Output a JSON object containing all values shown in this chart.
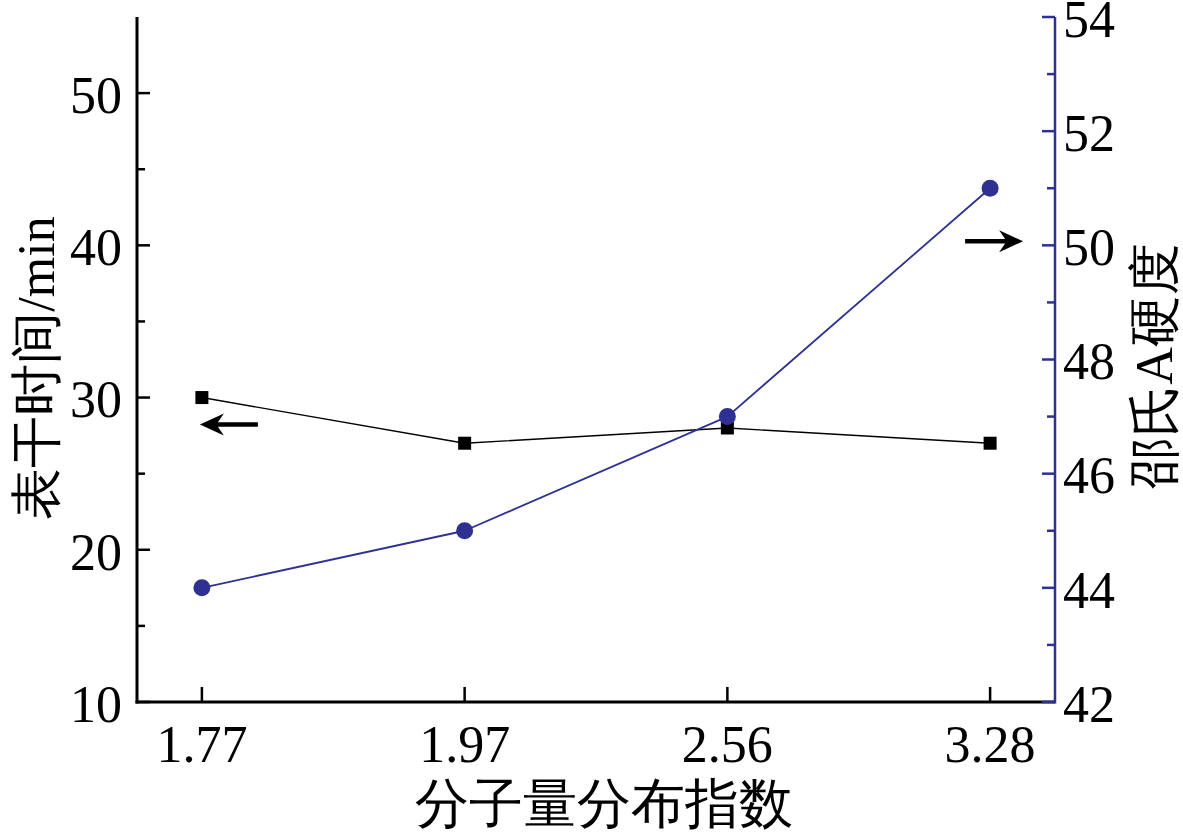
{
  "chart_data": {
    "type": "line",
    "xlabel": "分子量分布指数",
    "ylabel": "表干时间/min",
    "y2label": "邵氏A硬度",
    "categories": [
      "1.77",
      "1.97",
      "2.56",
      "3.28"
    ],
    "series": [
      {
        "color": "#000000",
        "marker": "square",
        "values": [
          30,
          27,
          28,
          27
        ]
      },
      {
        "color": "#2e3192",
        "marker": "circle",
        "axis": "y2",
        "values": [
          44,
          45,
          47,
          51
        ]
      }
    ],
    "line_style": "solid",
    "ylim": [
      10,
      55
    ],
    "yticks": [
      10,
      {
        "value": 15,
        "label": null
      },
      20,
      {
        "value": 25,
        "label": null
      },
      30,
      {
        "value": 35,
        "label": null
      },
      40,
      {
        "value": 45,
        "label": null
      },
      50
    ],
    "y2lim": [
      42,
      54
    ],
    "y2ticks": [
      42,
      {
        "value": 43,
        "label": null
      },
      44,
      {
        "value": 45,
        "label": null
      },
      46,
      {
        "value": 47,
        "label": null
      },
      48,
      {
        "value": 49,
        "label": null
      },
      50,
      {
        "value": 51,
        "label": null
      },
      52,
      {
        "value": 53,
        "label": null
      },
      54
    ]
  }
}
